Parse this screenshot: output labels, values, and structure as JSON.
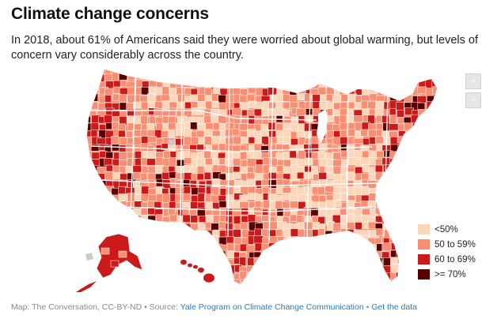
{
  "header": {
    "title": "Climate change concerns",
    "subtitle": "In 2018, about 61% of Americans said they were worried about global warming, but levels of concern vary considerably across the country."
  },
  "map": {
    "colors": {
      "under_50": "#fcd6b9",
      "fifty_to_59": "#fa8e73",
      "sixty_to_69": "#cc1a1a",
      "seventy_plus": "#5a0000",
      "border": "#ffffff",
      "no_data": "#cccccc"
    },
    "zoom_in_label": "+",
    "zoom_out_label": "−"
  },
  "legend": {
    "items": [
      {
        "label": "<50%",
        "color": "#fcd6b9"
      },
      {
        "label": "50 to 59%",
        "color": "#fa8e73"
      },
      {
        "label": "60 to 69%",
        "color": "#cc1a1a"
      },
      {
        "label": ">= 70%",
        "color": "#5a0000"
      }
    ]
  },
  "footer": {
    "credit": "Map: The Conversation, CC-BY-ND",
    "separator": " • ",
    "source_prefix": "Source: ",
    "source_link": "Yale Program on Climate Change Communication",
    "data_link": "Get the data"
  }
}
